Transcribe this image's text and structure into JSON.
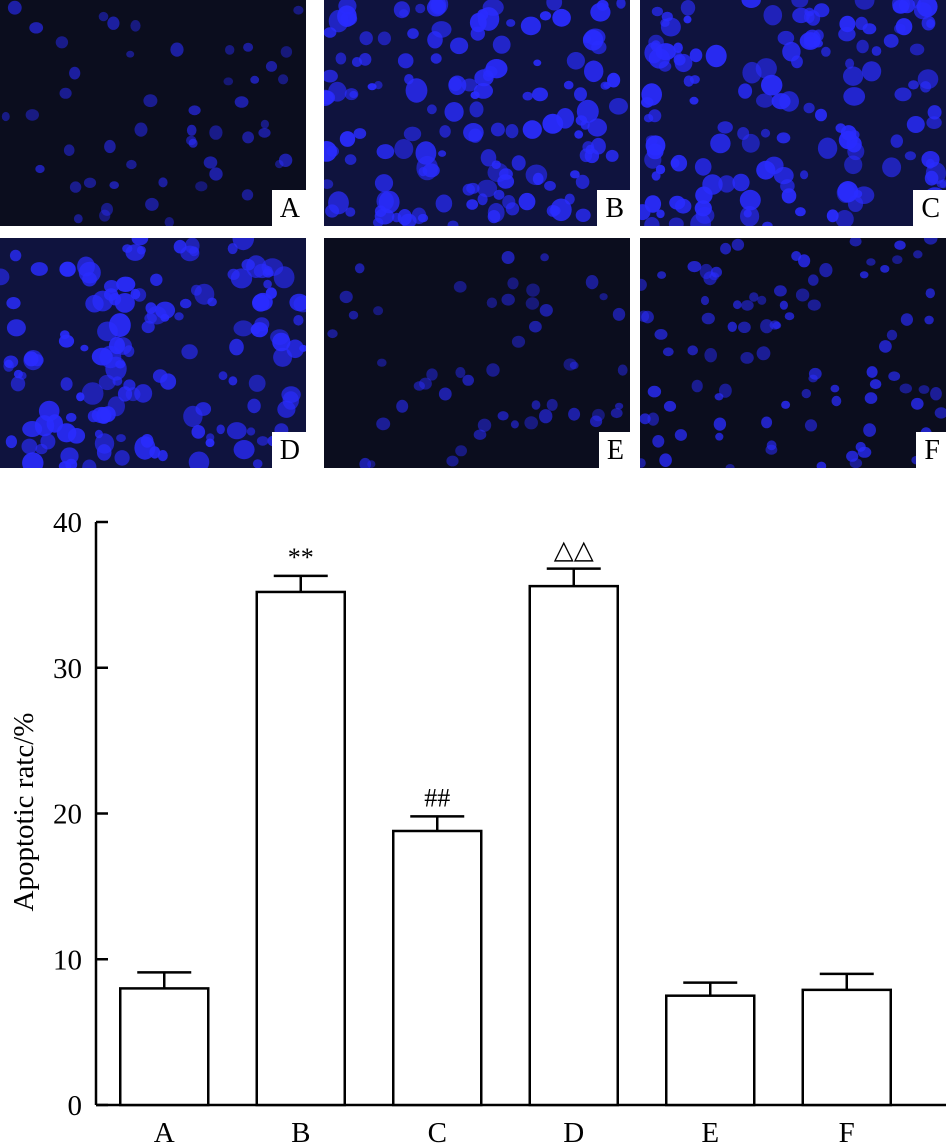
{
  "panels": [
    {
      "label": "A",
      "density": "sparse",
      "brightness": "dim"
    },
    {
      "label": "B",
      "density": "dense",
      "brightness": "bright"
    },
    {
      "label": "C",
      "density": "dense",
      "brightness": "bright"
    },
    {
      "label": "D",
      "density": "dense",
      "brightness": "bright"
    },
    {
      "label": "E",
      "density": "sparse",
      "brightness": "dim"
    },
    {
      "label": "F",
      "density": "medium",
      "brightness": "medium"
    }
  ],
  "colors": {
    "panel_background": "#0b0d1e",
    "nuclei": "#2a2cff",
    "bar_fill": "#ffffff",
    "bar_stroke": "#000000"
  },
  "chart_data": {
    "type": "bar",
    "title": "",
    "xlabel": "",
    "ylabel": "Apoptotic ratc/%",
    "ylim": [
      0,
      40
    ],
    "yticks": [
      0,
      10,
      20,
      30,
      40
    ],
    "categories": [
      "A",
      "B",
      "C",
      "D",
      "E",
      "F"
    ],
    "values": [
      8.0,
      35.2,
      18.8,
      35.6,
      7.5,
      7.9
    ],
    "errors": [
      1.1,
      1.1,
      1.0,
      1.2,
      0.9,
      1.1
    ],
    "annotations": [
      "",
      "**",
      "##",
      "△△",
      "",
      ""
    ],
    "grid": false
  }
}
